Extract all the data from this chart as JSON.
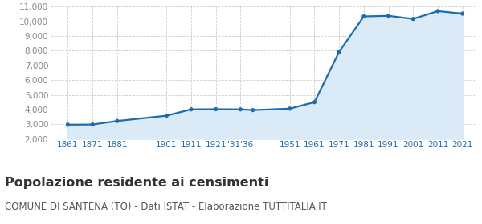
{
  "years": [
    1861,
    1871,
    1881,
    1901,
    1911,
    1921,
    1931,
    1936,
    1951,
    1961,
    1971,
    1981,
    1991,
    2001,
    2011,
    2021
  ],
  "population": [
    2970,
    2980,
    3220,
    3580,
    4010,
    4020,
    4010,
    3960,
    4060,
    4500,
    7930,
    10340,
    10380,
    10170,
    10700,
    10530
  ],
  "ylim": [
    2000,
    11000
  ],
  "yticks": [
    2000,
    3000,
    4000,
    5000,
    6000,
    7000,
    8000,
    9000,
    10000,
    11000
  ],
  "x_tick_pos": [
    1861,
    1871,
    1881,
    1901,
    1911,
    1921,
    1931,
    1951,
    1961,
    1971,
    1981,
    1991,
    2001,
    2011,
    2021
  ],
  "x_tick_lab": [
    "1861",
    "1871",
    "1881",
    "1901",
    "1911",
    "1921",
    "'31'36",
    "1951",
    "1961",
    "1971",
    "1981",
    "1991",
    "2001",
    "2011",
    "2021"
  ],
  "xlim_left": 1854,
  "xlim_right": 2026,
  "line_color": "#1c6db0",
  "fill_color": "#daeaf7",
  "marker_color": "#1c6db0",
  "grid_color": "#cccccc",
  "background_color": "#ffffff",
  "title": "Popolazione residente ai censimenti",
  "subtitle": "COMUNE DI SANTENA (TO) - Dati ISTAT - Elaborazione TUTTITALIA.IT",
  "title_fontsize": 11.5,
  "subtitle_fontsize": 8.5,
  "xtick_fontsize": 7.5,
  "ytick_fontsize": 7.5,
  "xtick_color": "#1c6db0",
  "ytick_color": "#888888"
}
